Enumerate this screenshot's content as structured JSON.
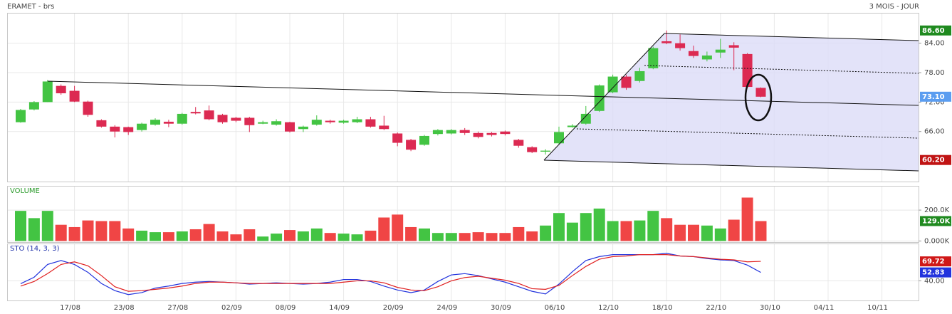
{
  "chart_data": [
    {
      "type": "candlestick",
      "title": "ERAMET - brs",
      "subtitle": "3 MOIS - JOUR",
      "open": [
        67.9,
        70.5,
        72.0,
        75.3,
        74.3,
        72.1,
        68.3,
        67.0,
        66.9,
        66.3,
        67.4,
        68.0,
        67.6,
        70.0,
        70.3,
        69.4,
        68.8,
        68.8,
        67.6,
        67.4,
        67.9,
        66.5,
        67.4,
        68.2,
        67.8,
        67.9,
        68.5,
        67.2,
        65.6,
        64.3,
        63.3,
        65.5,
        65.6,
        66.3,
        65.7,
        65.7,
        66.0,
        64.3,
        62.8,
        61.9,
        63.6,
        66.9,
        67.6,
        70.2,
        74.0,
        77.2,
        76.3,
        78.9,
        84.4,
        84.0,
        82.4,
        80.7,
        82.1,
        83.6,
        81.8,
        74.9
      ],
      "high": [
        70.6,
        72.2,
        76.5,
        75.6,
        75.3,
        72.3,
        68.5,
        67.3,
        67.0,
        67.8,
        68.7,
        68.4,
        69.8,
        71.0,
        71.3,
        69.6,
        69.0,
        69.0,
        68.2,
        68.5,
        68.0,
        67.2,
        69.3,
        68.4,
        68.4,
        69.0,
        69.0,
        69.2,
        65.8,
        64.5,
        65.3,
        66.5,
        66.5,
        66.7,
        66.0,
        65.9,
        66.2,
        64.5,
        63.0,
        62.4,
        67.0,
        67.5,
        71.2,
        75.6,
        77.6,
        77.6,
        79.0,
        83.3,
        86.6,
        85.8,
        83.5,
        82.3,
        84.9,
        84.2,
        82.0,
        75.0
      ],
      "low": [
        67.8,
        70.3,
        72.0,
        73.5,
        72.0,
        69.0,
        66.8,
        64.8,
        65.3,
        66.0,
        67.2,
        66.9,
        67.4,
        69.5,
        68.3,
        67.6,
        67.9,
        65.9,
        67.5,
        67.2,
        65.8,
        65.9,
        67.2,
        67.6,
        67.6,
        67.7,
        66.8,
        66.3,
        63.0,
        62.0,
        63.1,
        65.2,
        65.4,
        65.3,
        64.6,
        65.0,
        65.2,
        62.7,
        61.6,
        61.3,
        63.4,
        66.8,
        67.4,
        70.0,
        73.8,
        74.5,
        76.0,
        78.7,
        83.8,
        82.5,
        81.0,
        80.3,
        81.0,
        78.5,
        74.8,
        73.0
      ],
      "close": [
        70.4,
        72.0,
        76.2,
        73.8,
        72.1,
        69.4,
        67.0,
        66.0,
        65.9,
        67.6,
        68.4,
        67.6,
        69.6,
        69.7,
        68.5,
        67.9,
        68.2,
        67.3,
        67.9,
        68.1,
        66.0,
        67.0,
        68.4,
        67.9,
        68.2,
        68.5,
        67.0,
        66.5,
        63.7,
        62.3,
        65.1,
        66.3,
        66.3,
        65.7,
        64.9,
        65.3,
        65.5,
        63.1,
        61.8,
        62.1,
        65.9,
        67.2,
        69.6,
        75.4,
        77.2,
        74.9,
        78.3,
        83.0,
        84.0,
        83.0,
        81.4,
        81.5,
        82.7,
        83.1,
        75.1,
        73.1
      ],
      "up_color": "#43c443",
      "down_color": "#dc2a52",
      "ylim": [
        55.8,
        90.2
      ],
      "yticks": [
        {
          "value": 66,
          "label": "66.00"
        },
        {
          "value": 72,
          "label": "72.00"
        },
        {
          "value": 78,
          "label": "78.00"
        },
        {
          "value": 84,
          "label": "84.00"
        }
      ],
      "xticks": [
        {
          "value": 4,
          "label": "17/08"
        },
        {
          "value": 8,
          "label": "23/08"
        },
        {
          "value": 12,
          "label": "27/08"
        },
        {
          "value": 16,
          "label": "02/09"
        },
        {
          "value": 20,
          "label": "08/09"
        },
        {
          "value": 24,
          "label": "14/09"
        },
        {
          "value": 28,
          "label": "20/09"
        },
        {
          "value": 32,
          "label": "24/09"
        },
        {
          "value": 36,
          "label": "30/09"
        },
        {
          "value": 40,
          "label": "06/10"
        },
        {
          "value": 44,
          "label": "12/10"
        },
        {
          "value": 48,
          "label": "18/10"
        },
        {
          "value": 52,
          "label": "22/10"
        },
        {
          "value": 56,
          "label": "30/10"
        },
        {
          "value": 60,
          "label": "04/11"
        },
        {
          "value": 64,
          "label": "10/11"
        }
      ],
      "markers": [
        {
          "value": 86.6,
          "label": "86.60",
          "color": "#1f8a1f"
        },
        {
          "value": 73.1,
          "label": "73.10",
          "color": "#5b9df0"
        },
        {
          "value": 60.2,
          "label": "60.20",
          "color": "#c01414"
        }
      ],
      "grid": true
    },
    {
      "type": "bar",
      "title": "VOLUME",
      "values": [
        195,
        148,
        195,
        105,
        90,
        133,
        129,
        129,
        81,
        67,
        57,
        57,
        62,
        76,
        110,
        62,
        43,
        76,
        29,
        48,
        71,
        62,
        81,
        52,
        48,
        43,
        67,
        152,
        171,
        90,
        81,
        52,
        52,
        52,
        57,
        52,
        52,
        90,
        62,
        100,
        181,
        119,
        181,
        210,
        129,
        129,
        133,
        195,
        148,
        105,
        105,
        100,
        81,
        138,
        281,
        129
      ],
      "up_color": "#43c443",
      "down_color": "#f04545",
      "ylim": [
        -7,
        357
      ],
      "yticks": [
        {
          "value": 0,
          "label": "0.000K"
        },
        {
          "value": 200,
          "label": "200.0K"
        }
      ],
      "markers": [
        {
          "value": 129,
          "label": "129.0K",
          "color": "#1f8a1f"
        }
      ],
      "grid": true
    },
    {
      "type": "line",
      "title": "STO (14, 3, 3)",
      "series": [
        {
          "color": "#2233dd",
          "values": [
            35.6,
            45.5,
            65,
            71,
            65,
            53,
            36,
            25,
            19,
            22,
            29,
            32,
            36,
            38,
            39,
            38,
            37,
            35,
            36,
            37,
            36,
            35,
            36,
            38,
            42,
            42,
            39,
            32,
            26,
            22,
            26,
            39,
            49,
            51,
            48,
            43,
            38,
            31,
            24,
            20,
            35,
            54,
            71,
            77,
            80,
            80,
            80,
            80,
            82,
            78,
            77,
            74,
            72,
            71,
            64,
            52.83
          ]
        },
        {
          "color": "#e02020",
          "values": [
            32,
            39,
            51,
            65,
            69,
            63,
            48,
            31,
            24,
            25,
            27,
            29,
            32,
            36,
            38,
            38,
            37,
            36,
            36,
            36,
            36,
            36,
            36,
            36,
            38,
            40,
            40,
            37,
            30,
            26,
            25,
            31,
            40,
            45,
            47,
            44,
            41,
            36,
            28,
            27,
            33,
            48,
            62,
            73,
            77,
            78,
            80,
            80,
            80,
            78,
            77,
            75,
            73,
            72,
            69,
            69.72
          ]
        }
      ],
      "ylim": [
        10,
        97
      ],
      "yticks": [
        {
          "value": 40,
          "label": "40.00"
        }
      ],
      "markers": [
        {
          "value": 69.72,
          "label": "69.72",
          "color": "#d01818"
        },
        {
          "value": 52.83,
          "label": "52.83",
          "color": "#2233dd"
        }
      ],
      "grid": true
    }
  ]
}
